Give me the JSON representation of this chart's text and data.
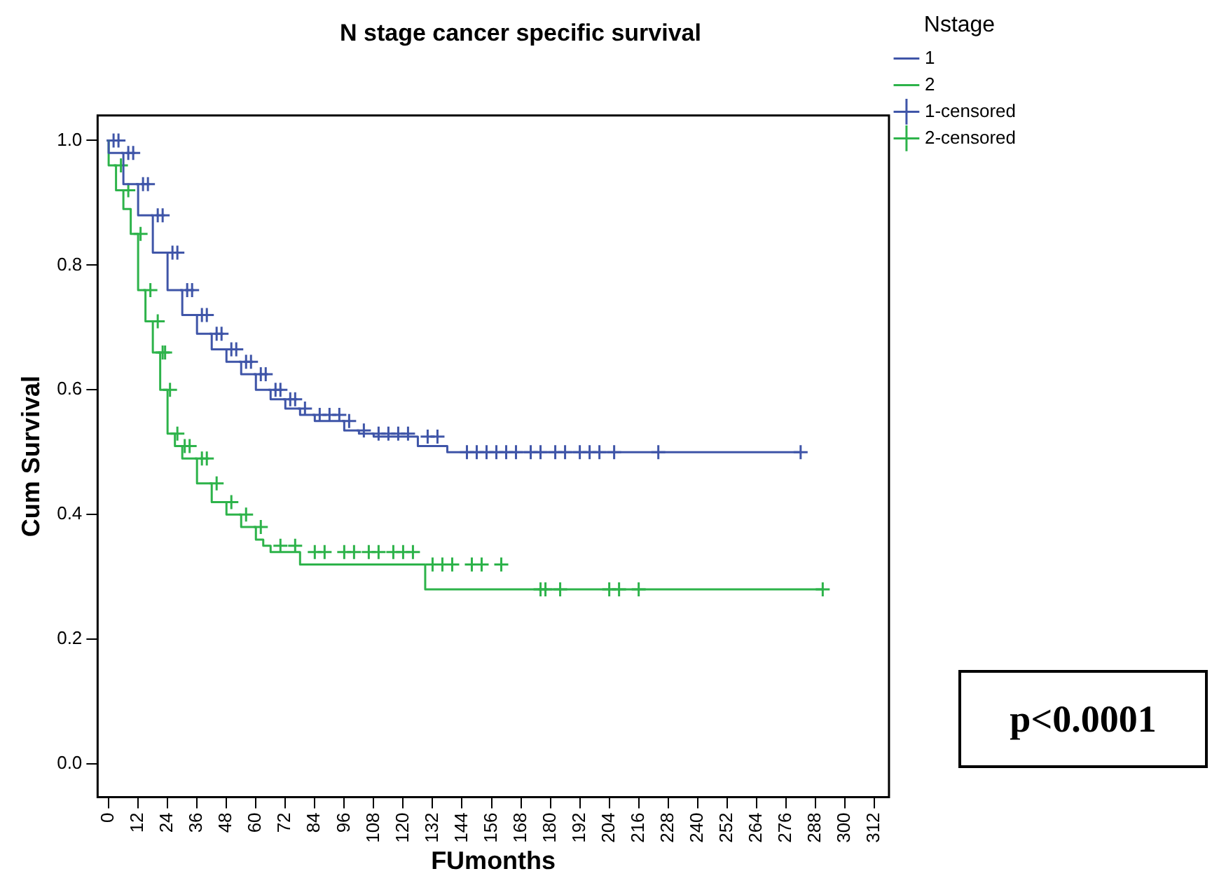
{
  "chart_data": {
    "type": "step",
    "title": "N stage cancer specific survival",
    "xlabel": "FUmonths",
    "ylabel": "Cum Survival",
    "legend_title": "Nstage",
    "legend": "top right",
    "grid": false,
    "xlim": [
      -4.5,
      318
    ],
    "xticks": [
      0,
      12,
      24,
      36,
      48,
      60,
      72,
      84,
      96,
      108,
      120,
      132,
      144,
      156,
      168,
      180,
      192,
      204,
      216,
      228,
      240,
      252,
      264,
      276,
      288,
      300,
      312
    ],
    "ylim": [
      -0.053,
      1.04
    ],
    "yticks": [
      {
        "value": 0,
        "label": "0.0"
      },
      {
        "value": 0.2,
        "label": "0.2"
      },
      {
        "value": 0.4,
        "label": "0.4"
      },
      {
        "value": 0.6,
        "label": "0.6"
      },
      {
        "value": 0.8,
        "label": "0.8"
      },
      {
        "value": 1,
        "label": "1.0"
      }
    ],
    "annotations": [
      "p<0.0001"
    ],
    "series": [
      {
        "name": "1",
        "marker": "none",
        "color": "#3f55a8",
        "x": [
          0,
          6,
          12,
          18,
          24,
          30,
          36,
          42,
          48,
          54,
          60,
          66,
          72,
          78,
          84,
          96,
          102,
          108,
          126,
          138,
          141,
          282
        ],
        "values": [
          1,
          0.98,
          0.93,
          0.88,
          0.82,
          0.76,
          0.72,
          0.69,
          0.665,
          0.645,
          0.625,
          0.6,
          0.585,
          0.57,
          0.56,
          0.55,
          0.535,
          0.53,
          0.525,
          0.51,
          0.5,
          0.5
        ]
      },
      {
        "name": "2",
        "marker": "none",
        "color": "#2db34a",
        "x": [
          0,
          3,
          6,
          9,
          12,
          15,
          18,
          21,
          24,
          27,
          30,
          36,
          42,
          48,
          54,
          60,
          63,
          66,
          78,
          129,
          174,
          291
        ],
        "values": [
          1,
          0.96,
          0.92,
          0.89,
          0.85,
          0.76,
          0.71,
          0.66,
          0.6,
          0.53,
          0.51,
          0.49,
          0.45,
          0.42,
          0.4,
          0.38,
          0.36,
          0.35,
          0.34,
          0.32,
          0.28,
          0.28
        ]
      },
      {
        "name": "1-censored",
        "type": "scatter",
        "marker": "cross",
        "color": "#3f55a8",
        "x": [
          2,
          4,
          8,
          10,
          14,
          16,
          20,
          22,
          26,
          28,
          32,
          34,
          38,
          40,
          44,
          46,
          50,
          52,
          56,
          58,
          62,
          64,
          68,
          70,
          74,
          76,
          80,
          86,
          90,
          94,
          98,
          104,
          110,
          114,
          118,
          122,
          130,
          134,
          146,
          150,
          154,
          158,
          162,
          166,
          172,
          176,
          182,
          186,
          192,
          196,
          200,
          206,
          224,
          282
        ],
        "values": [
          1,
          1,
          0.98,
          0.98,
          0.93,
          0.93,
          0.88,
          0.88,
          0.82,
          0.82,
          0.76,
          0.76,
          0.72,
          0.72,
          0.69,
          0.69,
          0.665,
          0.665,
          0.645,
          0.645,
          0.625,
          0.625,
          0.6,
          0.6,
          0.585,
          0.585,
          0.57,
          0.56,
          0.56,
          0.56,
          0.55,
          0.535,
          0.53,
          0.53,
          0.53,
          0.53,
          0.525,
          0.525,
          0.5,
          0.5,
          0.5,
          0.5,
          0.5,
          0.5,
          0.5,
          0.5,
          0.5,
          0.5,
          0.5,
          0.5,
          0.5,
          0.5,
          0.5,
          0.5
        ]
      },
      {
        "name": "2-censored",
        "type": "scatter",
        "marker": "cross",
        "color": "#2db34a",
        "x": [
          5,
          8,
          13,
          17,
          20,
          22,
          23,
          25,
          28,
          31,
          33,
          38,
          40,
          44,
          50,
          56,
          62,
          70,
          76,
          84,
          88,
          96,
          100,
          106,
          110,
          116,
          120,
          124,
          132,
          136,
          140,
          148,
          152,
          160,
          176,
          178,
          184,
          204,
          208,
          216,
          291
        ],
        "values": [
          0.96,
          0.92,
          0.85,
          0.76,
          0.71,
          0.66,
          0.66,
          0.6,
          0.53,
          0.51,
          0.51,
          0.49,
          0.49,
          0.45,
          0.42,
          0.4,
          0.38,
          0.35,
          0.35,
          0.34,
          0.34,
          0.34,
          0.34,
          0.34,
          0.34,
          0.34,
          0.34,
          0.34,
          0.32,
          0.32,
          0.32,
          0.32,
          0.32,
          0.32,
          0.28,
          0.28,
          0.28,
          0.28,
          0.28,
          0.28,
          0.28
        ]
      }
    ]
  }
}
